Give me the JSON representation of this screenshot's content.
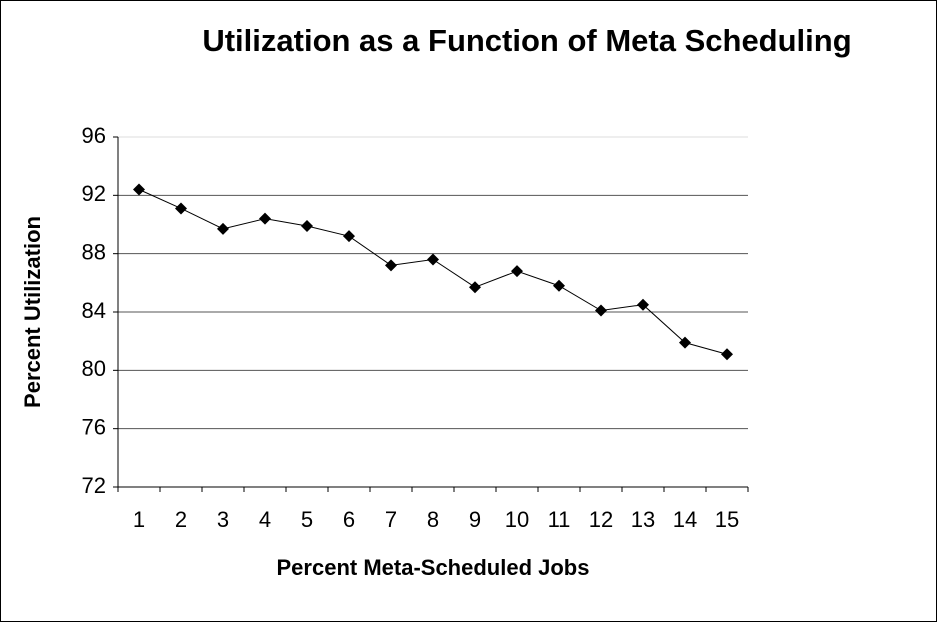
{
  "chart_data": {
    "type": "line",
    "title": "Utilization as a Function of Meta Scheduling",
    "x_label": "Percent Meta-Scheduled Jobs",
    "y_label": "Percent Utilization",
    "categories": [
      "1",
      "2",
      "3",
      "4",
      "5",
      "6",
      "7",
      "8",
      "9",
      "10",
      "11",
      "12",
      "13",
      "14",
      "15"
    ],
    "values": [
      92.4,
      91.1,
      89.7,
      90.4,
      89.9,
      89.2,
      87.2,
      87.6,
      85.7,
      86.8,
      85.8,
      84.1,
      84.5,
      81.9,
      81.1
    ],
    "color": "#000000",
    "ylim": [
      72,
      96
    ],
    "yticks": [
      72,
      76,
      80,
      84,
      88,
      92,
      96
    ],
    "grid": true
  }
}
